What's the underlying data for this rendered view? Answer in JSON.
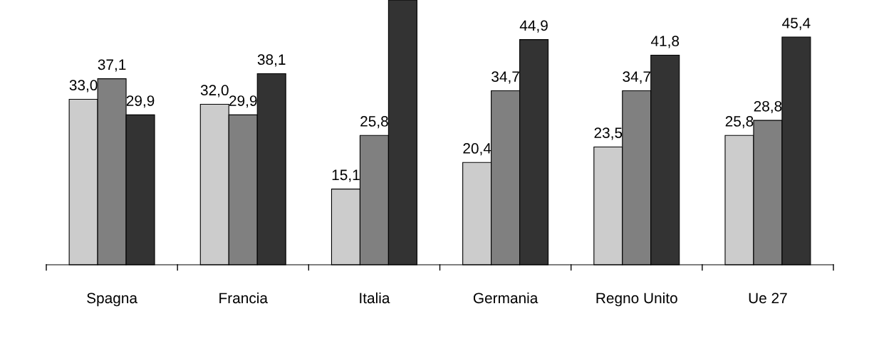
{
  "chart_data": {
    "type": "bar",
    "categories": [
      "Spagna",
      "Francia",
      "Italia",
      "Germania",
      "Regno Unito",
      "Ue 27"
    ],
    "series": [
      {
        "color": "#cccccc",
        "values": [
          33.0,
          32.0,
          15.1,
          20.4,
          23.5,
          25.8
        ],
        "value_labels": [
          "33,0",
          "32,0",
          "15,1",
          "20,4",
          "23,5",
          "25,8"
        ]
      },
      {
        "color": "#808080",
        "values": [
          37.1,
          29.9,
          25.8,
          34.7,
          34.7,
          28.8
        ],
        "value_labels": [
          "37,1",
          "29,9",
          "25,8",
          "34,7",
          "34,7",
          "28,8"
        ]
      },
      {
        "color": "#333333",
        "values": [
          29.9,
          38.1,
          52.8,
          44.9,
          41.8,
          45.4
        ],
        "value_labels": [
          "29,9",
          "38,1",
          null,
          "44,9",
          "41,8",
          "45,4"
        ]
      }
    ],
    "ylim": [
      0,
      52.8
    ],
    "tick_labels": "x",
    "grid": false,
    "legend": false
  }
}
